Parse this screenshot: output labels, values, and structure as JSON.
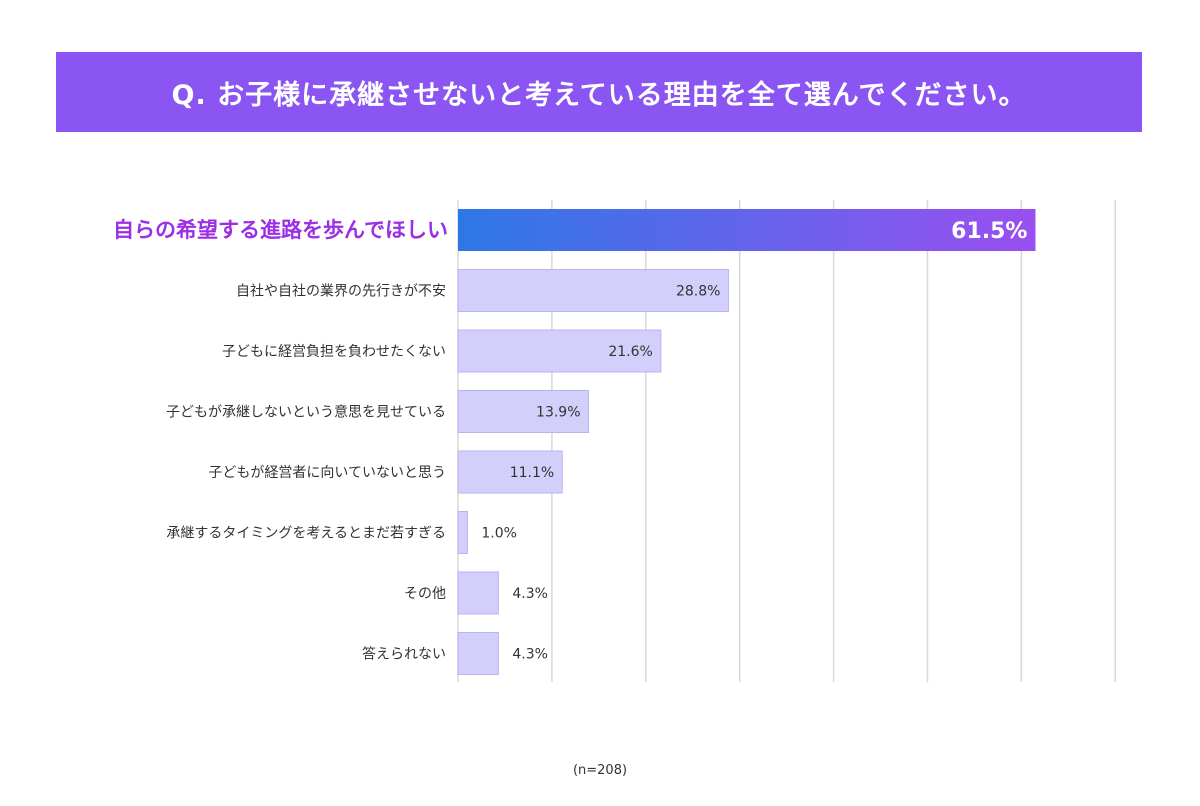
{
  "title": "Q. お子様に承継させないと考えている理由を全て選んでください。",
  "note": "(n=208)",
  "colors": {
    "banner": "#8a55f2",
    "highlight_text": "#9b2ee6",
    "highlight_gradient_start": "#2d78e6",
    "highlight_gradient_end": "#9a4ff0",
    "bar_fill": "#d3cffb",
    "bar_stroke": "#b9b3f5",
    "grid": "#d8d8d8"
  },
  "chart_data": {
    "type": "bar",
    "orientation": "horizontal",
    "unit": "%",
    "xlim": [
      0,
      70
    ],
    "categories": [
      "自らの希望する進路を歩んでほしい",
      "自社や自社の業界の先行きが不安",
      "子どもに経営負担を負わせたくない",
      "子どもが承継しないという意思を見せている",
      "子どもが経営者に向いていないと思う",
      "承継するタイミングを考えるとまだ若すぎる",
      "その他",
      "答えられない"
    ],
    "values": [
      61.5,
      28.8,
      21.6,
      13.9,
      11.1,
      1.0,
      4.3,
      4.3
    ],
    "value_labels": [
      "61.5%",
      "28.8%",
      "21.6%",
      "13.9%",
      "11.1%",
      "1.0%",
      "4.3%",
      "4.3%"
    ],
    "highlight_index": 0,
    "grid": true
  }
}
